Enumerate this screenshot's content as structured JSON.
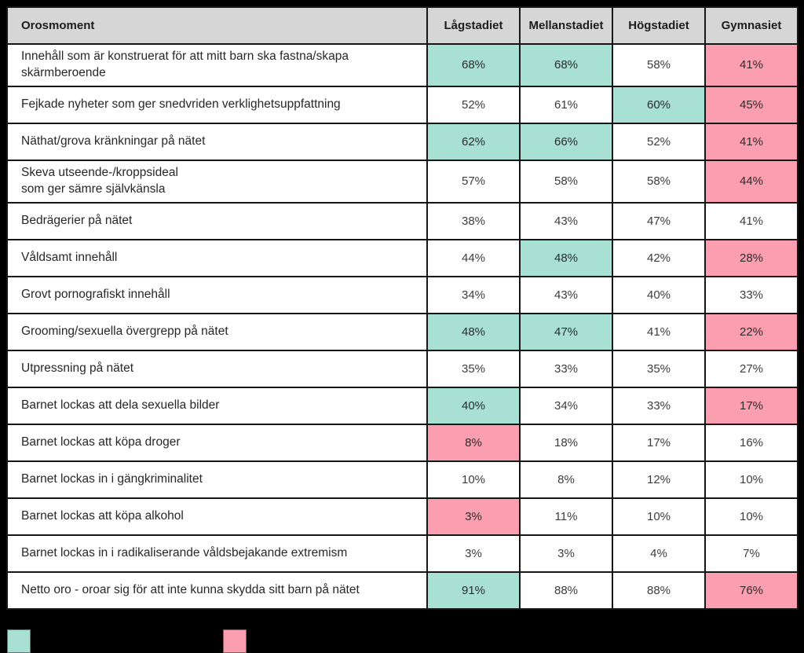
{
  "colors": {
    "page_bg": "#000000",
    "header_bg": "#d6d6d6",
    "cell_bg": "#ffffff",
    "highlight_high": "#a8e0d3",
    "highlight_low": "#fa9eb0",
    "border": "#161616",
    "text": "#2e2e2e"
  },
  "chart_data": {
    "type": "table",
    "header": {
      "label_col": "Orosmoment",
      "columns": [
        "Lågstadiet",
        "Mellanstadiet",
        "Högstadiet",
        "Gymnasiet"
      ]
    },
    "rows": [
      {
        "label": "Innehåll som är konstruerat för att mitt barn ska fastna/skapa skärmberoende",
        "values": [
          "68%",
          "68%",
          "58%",
          "41%"
        ],
        "numeric": [
          68,
          68,
          58,
          41
        ],
        "highlights": [
          "high",
          "high",
          "none",
          "low"
        ]
      },
      {
        "label": "Fejkade nyheter som ger snedvriden verklighetsuppfattning",
        "values": [
          "52%",
          "61%",
          "60%",
          "45%"
        ],
        "numeric": [
          52,
          61,
          60,
          45
        ],
        "highlights": [
          "none",
          "none",
          "high",
          "low"
        ]
      },
      {
        "label": "Näthat/grova kränkningar på nätet",
        "values": [
          "62%",
          "66%",
          "52%",
          "41%"
        ],
        "numeric": [
          62,
          66,
          52,
          41
        ],
        "highlights": [
          "high",
          "high",
          "none",
          "low"
        ]
      },
      {
        "label": "Skeva utseende-/kroppsideal\nsom ger sämre självkänsla",
        "values": [
          "57%",
          "58%",
          "58%",
          "44%"
        ],
        "numeric": [
          57,
          58,
          58,
          44
        ],
        "highlights": [
          "none",
          "none",
          "none",
          "low"
        ]
      },
      {
        "label": "Bedrägerier på nätet",
        "values": [
          "38%",
          "43%",
          "47%",
          "41%"
        ],
        "numeric": [
          38,
          43,
          47,
          41
        ],
        "highlights": [
          "none",
          "none",
          "none",
          "none"
        ]
      },
      {
        "label": "Våldsamt innehåll",
        "values": [
          "44%",
          "48%",
          "42%",
          "28%"
        ],
        "numeric": [
          44,
          48,
          42,
          28
        ],
        "highlights": [
          "none",
          "high",
          "none",
          "low"
        ]
      },
      {
        "label": "Grovt pornografiskt innehåll",
        "values": [
          "34%",
          "43%",
          "40%",
          "33%"
        ],
        "numeric": [
          34,
          43,
          40,
          33
        ],
        "highlights": [
          "none",
          "none",
          "none",
          "none"
        ]
      },
      {
        "label": "Grooming/sexuella övergrepp på nätet",
        "values": [
          "48%",
          "47%",
          "41%",
          "22%"
        ],
        "numeric": [
          48,
          47,
          41,
          22
        ],
        "highlights": [
          "high",
          "high",
          "none",
          "low"
        ]
      },
      {
        "label": "Utpressning på nätet",
        "values": [
          "35%",
          "33%",
          "35%",
          "27%"
        ],
        "numeric": [
          35,
          33,
          35,
          27
        ],
        "highlights": [
          "none",
          "none",
          "none",
          "none"
        ]
      },
      {
        "label": "Barnet lockas att dela sexuella bilder",
        "values": [
          "40%",
          "34%",
          "33%",
          "17%"
        ],
        "numeric": [
          40,
          34,
          33,
          17
        ],
        "highlights": [
          "high",
          "none",
          "none",
          "low"
        ]
      },
      {
        "label": "Barnet lockas att köpa droger",
        "values": [
          "8%",
          "18%",
          "17%",
          "16%"
        ],
        "numeric": [
          8,
          18,
          17,
          16
        ],
        "highlights": [
          "low",
          "none",
          "none",
          "none"
        ]
      },
      {
        "label": "Barnet lockas in i gängkriminalitet",
        "values": [
          "10%",
          "8%",
          "12%",
          "10%"
        ],
        "numeric": [
          10,
          8,
          12,
          10
        ],
        "highlights": [
          "none",
          "none",
          "none",
          "none"
        ]
      },
      {
        "label": "Barnet lockas att köpa alkohol",
        "values": [
          "3%",
          "11%",
          "10%",
          "10%"
        ],
        "numeric": [
          3,
          11,
          10,
          10
        ],
        "highlights": [
          "low",
          "none",
          "none",
          "none"
        ]
      },
      {
        "label": "Barnet lockas in i radikaliserande våldsbejakande extremism",
        "values": [
          "3%",
          "3%",
          "4%",
          "7%"
        ],
        "numeric": [
          3,
          3,
          4,
          7
        ],
        "highlights": [
          "none",
          "none",
          "none",
          "none"
        ]
      },
      {
        "label": "Netto oro - oroar sig för att inte kunna skydda sitt barn på nätet",
        "values": [
          "91%",
          "88%",
          "88%",
          "76%"
        ],
        "numeric": [
          91,
          88,
          88,
          76
        ],
        "highlights": [
          "high",
          "none",
          "none",
          "low"
        ]
      }
    ]
  },
  "legend": {
    "swatches": [
      {
        "name": "teal",
        "color": "#a8e0d3"
      },
      {
        "name": "pink",
        "color": "#fa9eb0"
      }
    ]
  }
}
